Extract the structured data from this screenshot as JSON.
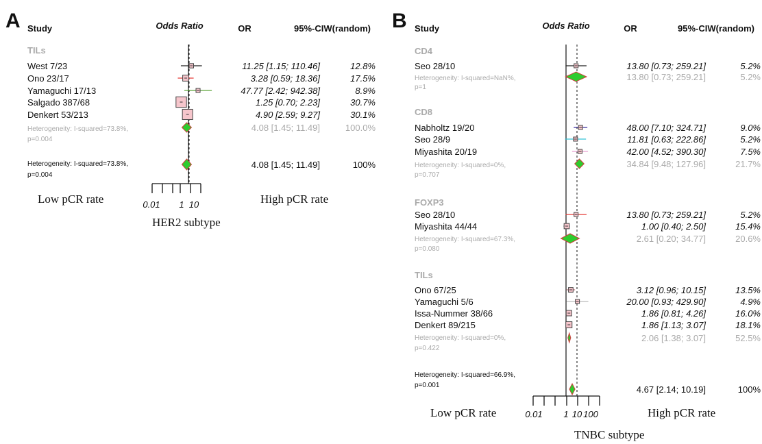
{
  "chart_data": [
    {
      "type": "forest",
      "panel": "A",
      "headers": {
        "study": "Study",
        "plot": "Odds Ratio",
        "or": "OR",
        "ci": "95%-CIW(random)"
      },
      "axis": {
        "ticks": [
          "0.01",
          "1",
          "10"
        ],
        "left_label": "Low pCR rate",
        "right_label": "High pCR rate",
        "scale": "log"
      },
      "subtitle": "HER2 subtype",
      "groups": [
        {
          "name": "TILs",
          "studies": [
            {
              "study": "West 7/23",
              "or": 11.25,
              "lo": 1.15,
              "hi": 110.46,
              "text": "11.25 [1.15; 110.46]",
              "weight": "12.8%",
              "color": "#222222"
            },
            {
              "study": "Ono 23/17",
              "or": 3.28,
              "lo": 0.59,
              "hi": 18.36,
              "text": "3.28 [0.59; 18.36]",
              "weight": "17.5%",
              "color": "#e53935"
            },
            {
              "study": "Yamaguchi 17/13",
              "or": 47.77,
              "lo": 2.42,
              "hi": 942.38,
              "text": "47.77 [2.42; 942.38]",
              "weight": "8.9%",
              "color": "#5da43a"
            },
            {
              "study": "Salgado 387/68",
              "or": 1.25,
              "lo": 0.7,
              "hi": 2.23,
              "text": "1.25 [0.70; 2.23]",
              "weight": "30.7%",
              "color": "#e8a0aa"
            },
            {
              "study": "Denkert 53/213",
              "or": 4.9,
              "lo": 2.59,
              "hi": 9.27,
              "text": "4.90 [2.59; 9.27]",
              "weight": "30.1%",
              "color": "#c0707a"
            }
          ],
          "subtotal": {
            "or": 4.08,
            "lo": 1.45,
            "hi": 11.49,
            "text": "4.08 [1.45; 11.49]",
            "weight": "100.0%",
            "het1": "Heterogeneity: I-squared=73.8%,",
            "het2": "p=0.004"
          }
        }
      ],
      "overall": {
        "or": 4.08,
        "lo": 1.45,
        "hi": 11.49,
        "text": "4.08 [1.45; 11.49]",
        "weight": "100%",
        "het1": "Heterogeneity: I-squared=73.8%,",
        "het2": "p=0.004"
      }
    },
    {
      "type": "forest",
      "panel": "B",
      "headers": {
        "study": "Study",
        "plot": "Odds Ratio",
        "or": "OR",
        "ci": "95%-CIW(random)"
      },
      "axis": {
        "ticks": [
          "0.01",
          "1",
          "10",
          "100"
        ],
        "left_label": "Low pCR rate",
        "right_label": "High pCR rate",
        "scale": "log"
      },
      "subtitle": "TNBC subtype",
      "groups": [
        {
          "name": "CD4",
          "studies": [
            {
              "study": "Seo 28/10",
              "or": 13.8,
              "lo": 0.73,
              "hi": 259.21,
              "text": "13.80 [0.73; 259.21]",
              "weight": "5.2%",
              "color": "#222222"
            }
          ],
          "subtotal": {
            "or": 13.8,
            "lo": 0.73,
            "hi": 259.21,
            "text": "13.80 [0.73; 259.21]",
            "weight": "5.2%",
            "het1": "Heterogeneity: I-squared=NaN%,",
            "het2": "p=1"
          }
        },
        {
          "name": "CD8",
          "studies": [
            {
              "study": "Nabholtz 19/20",
              "or": 48.0,
              "lo": 7.1,
              "hi": 324.71,
              "text": "48.00 [7.10; 324.71]",
              "weight": "9.0%",
              "color": "#3a2e9e"
            },
            {
              "study": "Seo 28/9",
              "or": 11.81,
              "lo": 0.63,
              "hi": 222.86,
              "text": "11.81 [0.63; 222.86]",
              "weight": "5.2%",
              "color": "#33c2d8"
            },
            {
              "study": "Miyashita 20/19",
              "or": 42.0,
              "lo": 4.52,
              "hi": 390.3,
              "text": "42.00 [4.52; 390.30]",
              "weight": "7.5%",
              "color": "#e8a0d0"
            }
          ],
          "subtotal": {
            "or": 34.84,
            "lo": 9.48,
            "hi": 127.96,
            "text": "34.84 [9.48; 127.96]",
            "weight": "21.7%",
            "het1": "Heterogeneity: I-squared=0%,",
            "het2": "p=0.707"
          }
        },
        {
          "name": "FOXP3",
          "studies": [
            {
              "study": "Seo 28/10",
              "or": 13.8,
              "lo": 0.73,
              "hi": 259.21,
              "text": "13.80 [0.73; 259.21]",
              "weight": "5.2%",
              "color": "#e53935"
            },
            {
              "study": "Miyashita 44/44",
              "or": 1.0,
              "lo": 0.4,
              "hi": 2.5,
              "text": "1.00 [0.40; 2.50]",
              "weight": "15.4%",
              "color": "#888888"
            }
          ],
          "subtotal": {
            "or": 2.61,
            "lo": 0.2,
            "hi": 34.77,
            "text": "2.61 [0.20; 34.77]",
            "weight": "20.6%",
            "het1": "Heterogeneity: I-squared=67.3%,",
            "het2": "p=0.080"
          }
        },
        {
          "name": "TILs",
          "studies": [
            {
              "study": "Ono 67/25",
              "or": 3.12,
              "lo": 0.96,
              "hi": 10.15,
              "text": "3.12 [0.96; 10.15]",
              "weight": "13.5%",
              "color": "#c0707a"
            },
            {
              "study": "Yamaguchi 5/6",
              "or": 20.0,
              "lo": 0.93,
              "hi": 429.9,
              "text": "20.00 [0.93; 429.90]",
              "weight": "4.9%",
              "color": "#bbbbbb"
            },
            {
              "study": "Issa-Nummer 38/66",
              "or": 1.86,
              "lo": 0.81,
              "hi": 4.26,
              "text": "1.86 [0.81; 4.26]",
              "weight": "16.0%",
              "color": "#c0707a"
            },
            {
              "study": "Denkert 89/215",
              "or": 1.86,
              "lo": 1.13,
              "hi": 3.07,
              "text": "1.86 [1.13; 3.07]",
              "weight": "18.1%",
              "color": "#c0707a"
            }
          ],
          "subtotal": {
            "or": 2.06,
            "lo": 1.38,
            "hi": 3.07,
            "text": "2.06 [1.38; 3.07]",
            "weight": "52.5%",
            "het1": "Heterogeneity: I-squared=0%,",
            "het2": "p=0.422"
          }
        }
      ],
      "overall": {
        "or": 4.67,
        "lo": 2.14,
        "hi": 10.19,
        "text": "4.67 [2.14; 10.19]",
        "weight": "100%",
        "het1": "Heterogeneity: I-squared=66.9%,",
        "het2": "p=0.001"
      }
    }
  ],
  "colors": {
    "box_fill": "#f6c6cc",
    "box_stroke": "#444444",
    "diamond_fill": "#2ecc2e",
    "diamond_stroke": "#d04040",
    "axis": "#111111",
    "text_grey": "#aaaaaa"
  }
}
